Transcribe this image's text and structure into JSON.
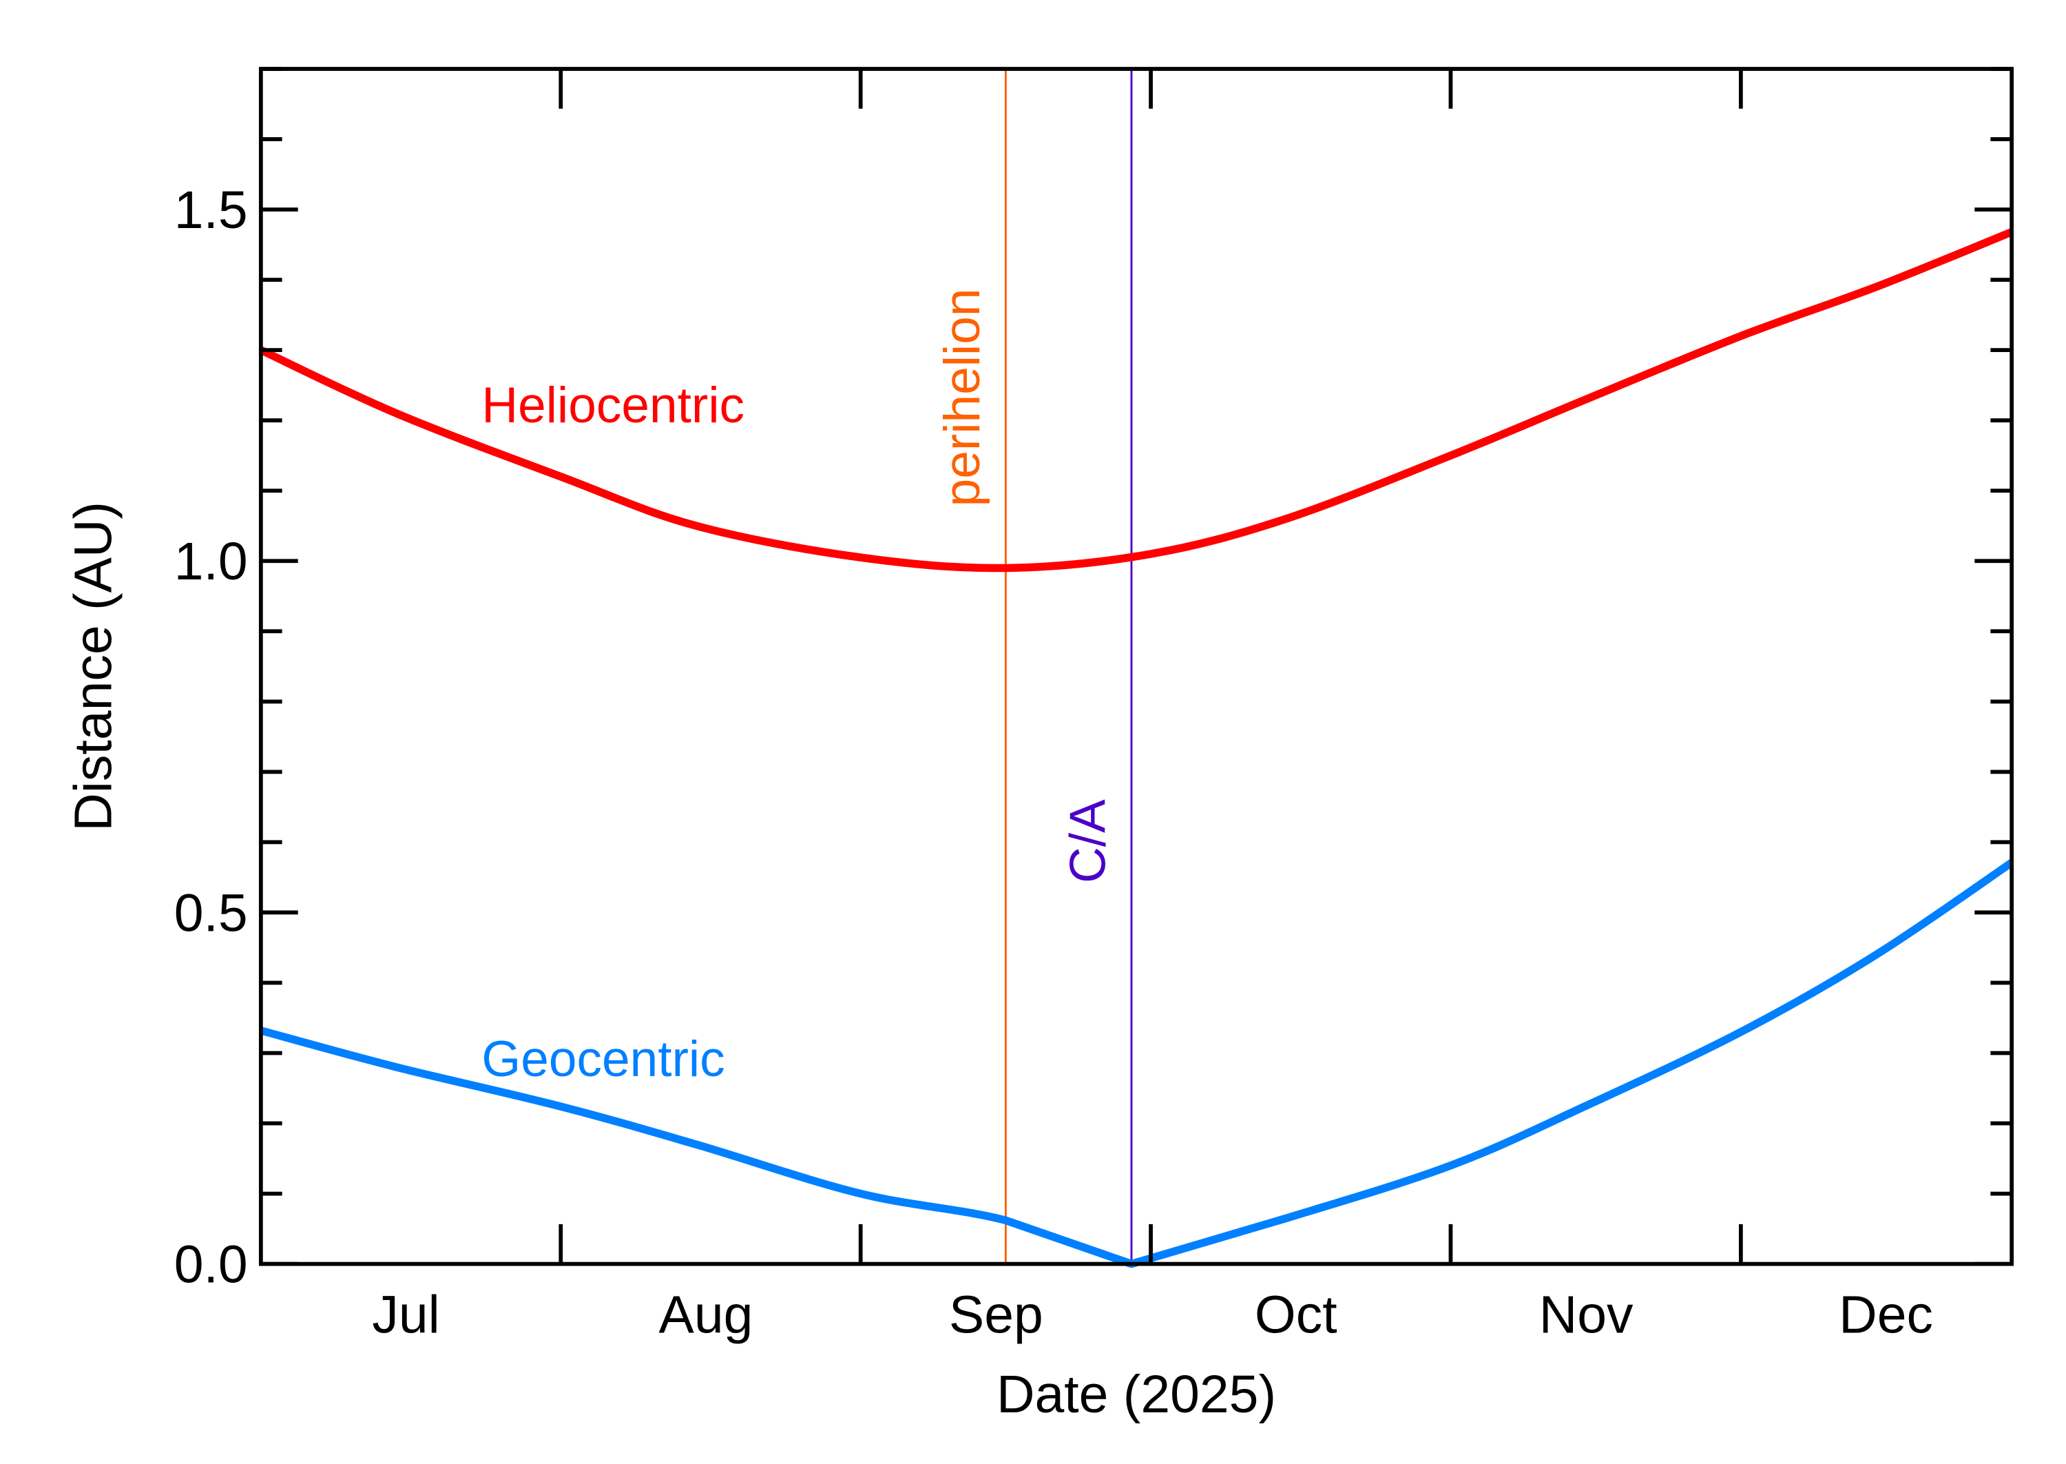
{
  "chart_data": {
    "type": "line",
    "xlabel": "Date (2025)",
    "ylabel": "Distance (AU)",
    "xlim": [
      "2025-07-01",
      "2025-12-29"
    ],
    "ylim": [
      0,
      1.7
    ],
    "yticks": [
      {
        "v": 0,
        "label": "0.0"
      },
      {
        "v": 0.5,
        "label": "0.5"
      },
      {
        "v": 1.0,
        "label": "1.0"
      },
      {
        "v": 1.5,
        "label": "1.5"
      }
    ],
    "yminor_step": 0.1,
    "xticks": [
      "2025-08-01",
      "2025-09-01",
      "2025-10-01",
      "2025-11-01",
      "2025-12-01"
    ],
    "xlabels": [
      {
        "date": "2025-07-16",
        "label": "Jul"
      },
      {
        "date": "2025-08-16",
        "label": "Aug"
      },
      {
        "date": "2025-09-15",
        "label": "Sep"
      },
      {
        "date": "2025-10-16",
        "label": "Oct"
      },
      {
        "date": "2025-11-15",
        "label": "Nov"
      },
      {
        "date": "2025-12-16",
        "label": "Dec"
      }
    ],
    "grid": false,
    "series": [
      {
        "name": "Heliocentric",
        "color": "#ff0000",
        "label_date": "2025-07-23",
        "label_value": 1.22,
        "points": [
          [
            "2025-07-01",
            1.3
          ],
          [
            "2025-07-15",
            1.21
          ],
          [
            "2025-08-01",
            1.12
          ],
          [
            "2025-08-15",
            1.05
          ],
          [
            "2025-09-01",
            1.005
          ],
          [
            "2025-09-16",
            0.99
          ],
          [
            "2025-10-01",
            1.01
          ],
          [
            "2025-10-15",
            1.06
          ],
          [
            "2025-11-01",
            1.15
          ],
          [
            "2025-11-15",
            1.23
          ],
          [
            "2025-12-01",
            1.32
          ],
          [
            "2025-12-15",
            1.39
          ],
          [
            "2025-12-29",
            1.468
          ]
        ]
      },
      {
        "name": "Geocentric",
        "color": "#0080ff",
        "label_date": "2025-07-23",
        "label_value": 0.29,
        "points": [
          [
            "2025-07-01",
            0.332
          ],
          [
            "2025-07-15",
            0.28
          ],
          [
            "2025-08-01",
            0.224
          ],
          [
            "2025-08-15",
            0.17
          ],
          [
            "2025-09-01",
            0.1
          ],
          [
            "2025-09-16",
            0.062
          ],
          [
            "2025-09-29",
            0.0
          ],
          [
            "2025-10-15",
            0.065
          ],
          [
            "2025-11-01",
            0.14
          ],
          [
            "2025-11-15",
            0.225
          ],
          [
            "2025-12-01",
            0.33
          ],
          [
            "2025-12-15",
            0.44
          ],
          [
            "2025-12-29",
            0.571
          ]
        ]
      }
    ],
    "annotations": [
      {
        "label": "perihelion",
        "date": "2025-09-16",
        "color": "#ff6000"
      },
      {
        "label": "C/A",
        "date": "2025-09-29",
        "color": "#4b00c8"
      }
    ]
  }
}
